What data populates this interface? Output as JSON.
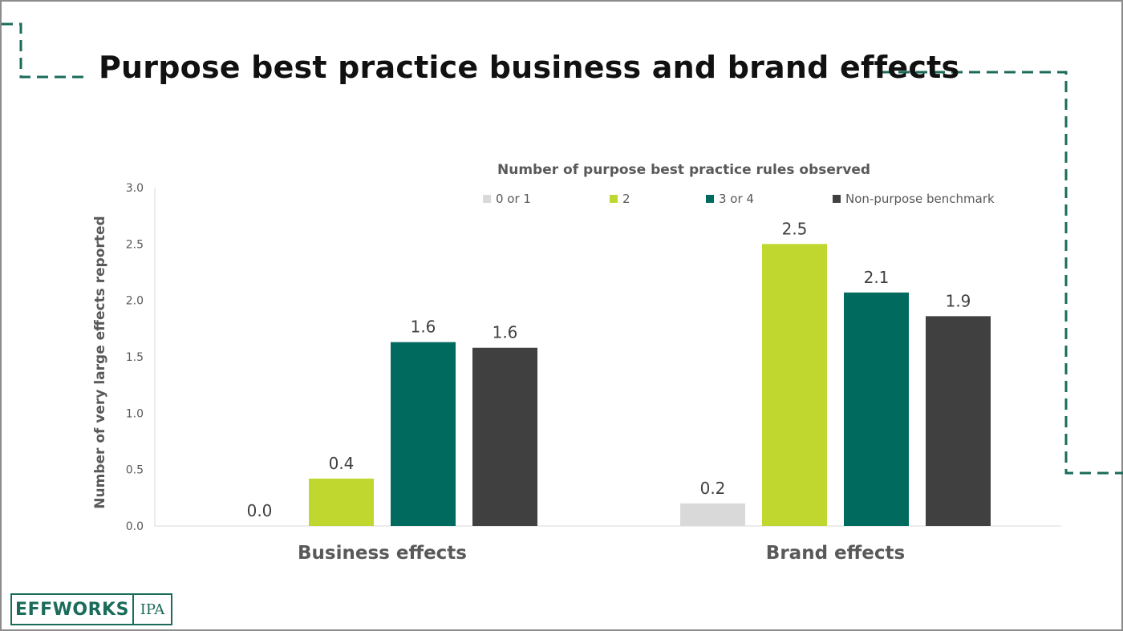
{
  "slide": {
    "title": "Purpose best practice business and brand effects"
  },
  "colors": {
    "accent_teal": "#1a6b5a",
    "series": [
      "#d9d9d9",
      "#c0d730",
      "#006a5f",
      "#404040"
    ]
  },
  "logo": {
    "wordmark": "EFFWORKS",
    "partner": "IPA"
  },
  "chart_data": {
    "type": "bar",
    "legend_title": "Number of purpose best practice rules observed",
    "legend_placement": "top",
    "ylabel": "Number of very large effects reported",
    "ylim": [
      0,
      3
    ],
    "yticks": [
      "0.0",
      "0.5",
      "1.0",
      "1.5",
      "2.0",
      "2.5",
      "3.0"
    ],
    "grid": false,
    "categories": [
      "Business effects",
      "Brand effects"
    ],
    "series": [
      {
        "name": "0 or 1",
        "values": [
          0.0,
          0.2
        ],
        "labels": [
          "0.0",
          "0.2"
        ]
      },
      {
        "name": "2",
        "values": [
          0.42,
          2.5
        ],
        "labels": [
          "0.4",
          "2.5"
        ]
      },
      {
        "name": "3 or 4",
        "values": [
          1.63,
          2.07
        ],
        "labels": [
          "1.6",
          "2.1"
        ]
      },
      {
        "name": "Non-purpose benchmark",
        "values": [
          1.58,
          1.86
        ],
        "labels": [
          "1.6",
          "1.9"
        ]
      }
    ]
  }
}
